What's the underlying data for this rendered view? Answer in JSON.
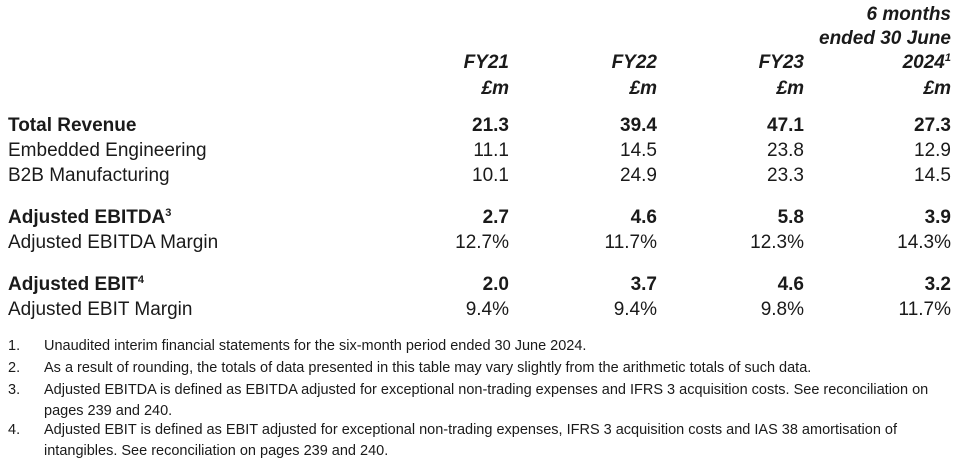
{
  "columns": [
    {
      "period": "FY21",
      "unit": "£m"
    },
    {
      "period": "FY22",
      "unit": "£m"
    },
    {
      "period": "FY23",
      "unit": "£m"
    },
    {
      "period_line1": "6 months",
      "period_line2": "ended 30 June",
      "period": "2024",
      "period_sup": "1",
      "unit": "£m"
    }
  ],
  "rows": [
    {
      "label": "Total Revenue",
      "sup": "",
      "bold": true,
      "values": [
        "21.3",
        "39.4",
        "47.1",
        "27.3"
      ]
    },
    {
      "label": "Embedded Engineering",
      "sup": "",
      "bold": false,
      "values": [
        "11.1",
        "14.5",
        "23.8",
        "12.9"
      ]
    },
    {
      "label": "B2B Manufacturing",
      "sup": "",
      "bold": false,
      "values": [
        "10.1",
        "24.9",
        "23.3",
        "14.5"
      ]
    },
    {
      "label": "Adjusted EBITDA",
      "sup": "3",
      "bold": true,
      "values": [
        "2.7",
        "4.6",
        "5.8",
        "3.9"
      ]
    },
    {
      "label": "Adjusted EBITDA Margin",
      "sup": "",
      "bold": false,
      "values": [
        "12.7%",
        "11.7%",
        "12.3%",
        "14.3%"
      ]
    },
    {
      "label": "Adjusted EBIT",
      "sup": "4",
      "bold": true,
      "values": [
        "2.0",
        "3.7",
        "4.6",
        "3.2"
      ]
    },
    {
      "label": "Adjusted EBIT Margin",
      "sup": "",
      "bold": false,
      "values": [
        "9.4%",
        "9.4%",
        "9.8%",
        "11.7%"
      ]
    }
  ],
  "footnotes": [
    {
      "num": "1.",
      "text": "Unaudited interim financial statements for the six-month period ended 30 June 2024."
    },
    {
      "num": "2.",
      "text": "As a result of rounding, the totals of data presented in this table may vary slightly from the arithmetic totals of such data."
    },
    {
      "num": "3.",
      "text": "Adjusted EBITDA is defined as EBITDA adjusted for exceptional non-trading expenses and IFRS 3 acquisition costs. See reconciliation on pages 239 and 240."
    },
    {
      "num": "4.",
      "text": "Adjusted EBIT is defined as EBIT adjusted for exceptional non-trading expenses, IFRS 3 acquisition costs and IAS 38 amortisation of intangibles. See reconciliation on pages 239 and 240."
    }
  ]
}
